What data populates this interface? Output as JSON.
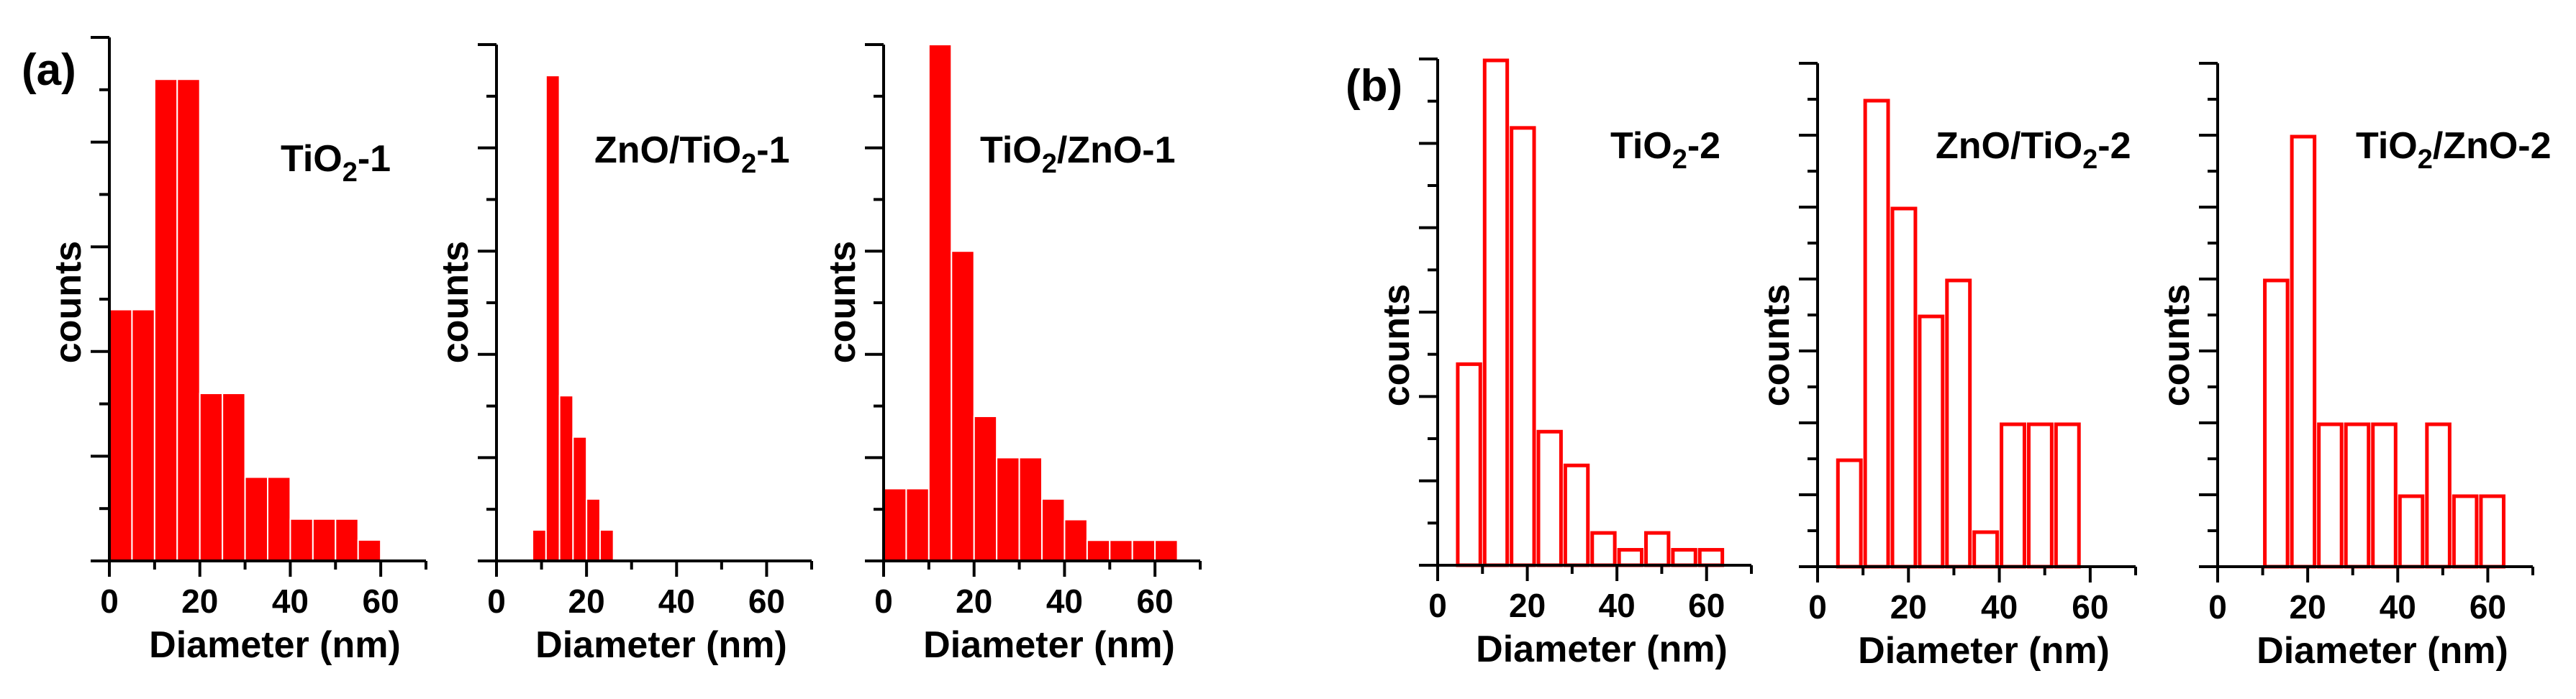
{
  "panels": [
    {
      "label": "(a)"
    },
    {
      "label": "(b)"
    }
  ],
  "chart_data": [
    {
      "type": "bar",
      "panel": "(a)",
      "style": "filled",
      "title": "TiO2-1",
      "title_parts": [
        "TiO",
        "2",
        "-1"
      ],
      "xlabel": "Diameter (nm)",
      "ylabel": "counts",
      "xlim": [
        0,
        70
      ],
      "ylim": [
        0,
        25
      ],
      "xticks": [
        0,
        20,
        40,
        60
      ],
      "bin_width": 5,
      "x": [
        2.5,
        7.5,
        12.5,
        17.5,
        22.5,
        27.5,
        32.5,
        37.5,
        42.5,
        47.5,
        52.5,
        57.5
      ],
      "values": [
        12,
        12,
        23,
        23,
        8,
        8,
        4,
        4,
        2,
        2,
        2,
        1
      ]
    },
    {
      "type": "bar",
      "panel": "(a)",
      "style": "filled",
      "title": "ZnO/TiO2-1",
      "title_parts": [
        "ZnO/TiO",
        "2",
        "-1"
      ],
      "xlabel": "Diameter (nm)",
      "ylabel": "counts",
      "xlim": [
        0,
        70
      ],
      "ylim": [
        0,
        50
      ],
      "xticks": [
        0,
        20,
        40,
        60
      ],
      "bin_width": 3,
      "x": [
        9.5,
        12.5,
        15.5,
        18.5,
        21.5,
        24.5
      ],
      "values": [
        3,
        47,
        16,
        12,
        6,
        3
      ]
    },
    {
      "type": "bar",
      "panel": "(a)",
      "style": "filled",
      "title": "TiO2/ZnO-1",
      "title_parts": [
        "TiO",
        "2",
        "/ZnO-1"
      ],
      "xlabel": "Diameter (nm)",
      "ylabel": "counts",
      "xlim": [
        0,
        70
      ],
      "ylim": [
        0,
        50
      ],
      "xticks": [
        0,
        20,
        40,
        60
      ],
      "bin_width": 5,
      "x": [
        2.5,
        7.5,
        12.5,
        17.5,
        22.5,
        27.5,
        32.5,
        37.5,
        42.5,
        47.5,
        52.5,
        57.5,
        62.5
      ],
      "values": [
        7,
        7,
        50,
        30,
        14,
        10,
        10,
        6,
        4,
        2,
        2,
        2,
        2
      ]
    },
    {
      "type": "bar",
      "panel": "(b)",
      "style": "outline",
      "title": "TiO2-2",
      "title_parts": [
        "TiO",
        "2",
        "-2"
      ],
      "xlabel": "Diameter (nm)",
      "ylabel": "counts",
      "xlim": [
        0,
        70
      ],
      "ylim": [
        0,
        30
      ],
      "xticks": [
        0,
        20,
        40,
        60
      ],
      "bin_width": 6,
      "x": [
        7,
        13,
        19,
        25,
        31,
        37,
        43,
        49,
        55,
        61
      ],
      "values": [
        12,
        30,
        26,
        8,
        6,
        2,
        1,
        2,
        1,
        1
      ]
    },
    {
      "type": "bar",
      "panel": "(b)",
      "style": "outline",
      "title": "ZnO/TiO2-2",
      "title_parts": [
        "ZnO/TiO",
        "2",
        "-2"
      ],
      "xlabel": "Diameter (nm)",
      "ylabel": "counts",
      "xlim": [
        0,
        70
      ],
      "ylim": [
        0,
        14
      ],
      "xticks": [
        0,
        20,
        40,
        60
      ],
      "bin_width": 6,
      "x": [
        7,
        13,
        19,
        25,
        31,
        37,
        43,
        49,
        55
      ],
      "values": [
        3,
        13,
        10,
        7,
        8,
        1,
        4,
        4,
        4
      ]
    },
    {
      "type": "bar",
      "panel": "(b)",
      "style": "outline",
      "title": "TiO2/ZnO-2",
      "title_parts": [
        "TiO",
        "2",
        "/ZnO-2"
      ],
      "xlabel": "Diameter (nm)",
      "ylabel": "counts",
      "xlim": [
        0,
        70
      ],
      "ylim": [
        0,
        7
      ],
      "xticks": [
        0,
        20,
        40,
        60
      ],
      "bin_width": 6,
      "x": [
        13,
        19,
        25,
        31,
        37,
        43,
        49,
        55,
        61
      ],
      "values": [
        4,
        6,
        2,
        2,
        2,
        1,
        2,
        1,
        1
      ]
    }
  ]
}
